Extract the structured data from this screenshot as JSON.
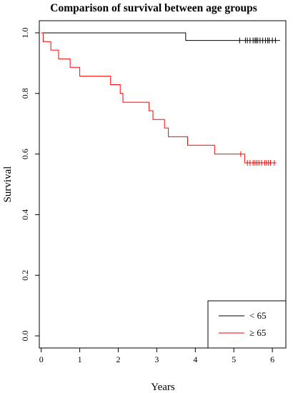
{
  "chart_data": {
    "type": "line",
    "title": "Comparison of survival between age groups",
    "xlabel": "Years",
    "ylabel": "Survival",
    "xlim": [
      -0.05,
      6.35
    ],
    "ylim": [
      -0.04,
      1.04
    ],
    "x_ticks": [
      0,
      1,
      2,
      3,
      4,
      5,
      6
    ],
    "y_ticks": [
      "0.0",
      "0.2",
      "0.4",
      "0.6",
      "0.8",
      "1.0"
    ],
    "grid": false,
    "legend_position": "bottom-right",
    "series": [
      {
        "name": "< 65",
        "color": "#000000",
        "steps": [
          {
            "x": 0,
            "y": 1.0
          },
          {
            "x": 3.75,
            "y": 0.975
          },
          {
            "x": 6.2,
            "y": 0.975
          }
        ],
        "censored": [
          5.15,
          5.3,
          5.35,
          5.42,
          5.5,
          5.55,
          5.58,
          5.62,
          5.68,
          5.75,
          5.82,
          5.88,
          5.92,
          6.0,
          6.08
        ]
      },
      {
        "name": "≥ 65",
        "color": "#ff0000",
        "steps": [
          {
            "x": 0,
            "y": 1.0
          },
          {
            "x": 0.05,
            "y": 0.971
          },
          {
            "x": 0.25,
            "y": 0.943
          },
          {
            "x": 0.45,
            "y": 0.914
          },
          {
            "x": 0.75,
            "y": 0.886
          },
          {
            "x": 1.0,
            "y": 0.857
          },
          {
            "x": 1.8,
            "y": 0.829
          },
          {
            "x": 2.05,
            "y": 0.8
          },
          {
            "x": 2.12,
            "y": 0.771
          },
          {
            "x": 2.8,
            "y": 0.743
          },
          {
            "x": 2.9,
            "y": 0.714
          },
          {
            "x": 3.2,
            "y": 0.686
          },
          {
            "x": 3.3,
            "y": 0.657
          },
          {
            "x": 3.8,
            "y": 0.629
          },
          {
            "x": 4.5,
            "y": 0.6
          },
          {
            "x": 5.28,
            "y": 0.571
          },
          {
            "x": 6.1,
            "y": 0.571
          }
        ],
        "censored_on_step": [
          {
            "x": 5.18,
            "y": 0.6
          }
        ],
        "censored": [
          5.35,
          5.42,
          5.5,
          5.55,
          5.6,
          5.65,
          5.72,
          5.8,
          5.85,
          5.9,
          5.95,
          6.05
        ]
      }
    ]
  }
}
